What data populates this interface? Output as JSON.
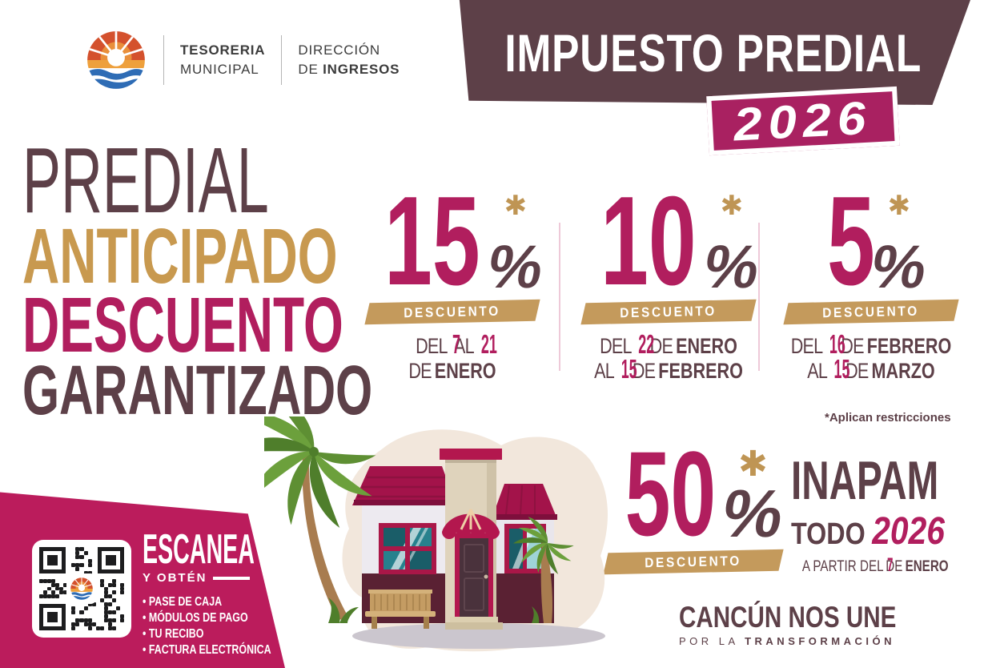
{
  "header": {
    "treasury": {
      "l1": "TESORERIA",
      "l2": "MUNICIPAL"
    },
    "direction": {
      "l1": "DIRECCIÓN",
      "l2a": "DE",
      "l2b": "INGRESOS"
    },
    "banner": {
      "title": "IMPUESTO PREDIAL",
      "year": "2026"
    }
  },
  "headline": {
    "l1": "PREDIAL",
    "l2": "ANTICIPADO",
    "l3": "DESCUENTO",
    "l4": "GARANTIZADO"
  },
  "discounts": [
    {
      "value": "15",
      "star": "✱",
      "percent": "%",
      "band": "DESCUENTO",
      "d1": [
        {
          "t": "DEL",
          "k": "thin"
        },
        {
          "t": "7",
          "k": "num"
        },
        {
          "t": "AL",
          "k": "thin"
        },
        {
          "t": "21",
          "k": "num"
        }
      ],
      "d2": [
        {
          "t": "DE",
          "k": "thin"
        },
        {
          "t": "ENERO",
          "k": "month"
        }
      ]
    },
    {
      "value": "10",
      "star": "✱",
      "percent": "%",
      "band": "DESCUENTO",
      "d1": [
        {
          "t": "DEL",
          "k": "thin"
        },
        {
          "t": "22",
          "k": "num"
        },
        {
          "t": "DE",
          "k": "thin"
        },
        {
          "t": "ENERO",
          "k": "month"
        }
      ],
      "d2": [
        {
          "t": "AL",
          "k": "thin"
        },
        {
          "t": "15",
          "k": "num"
        },
        {
          "t": "DE",
          "k": "thin"
        },
        {
          "t": "FEBRERO",
          "k": "month"
        }
      ]
    },
    {
      "value": "5",
      "star": "✱",
      "percent": "%",
      "band": "DESCUENTO",
      "d1": [
        {
          "t": "DEL",
          "k": "thin"
        },
        {
          "t": "16",
          "k": "num"
        },
        {
          "t": "DE",
          "k": "thin"
        },
        {
          "t": "FEBRERO",
          "k": "month"
        }
      ],
      "d2": [
        {
          "t": "AL",
          "k": "thin"
        },
        {
          "t": "15",
          "k": "num"
        },
        {
          "t": "DE",
          "k": "thin"
        },
        {
          "t": "MARZO",
          "k": "month"
        }
      ]
    }
  ],
  "restrictions": "*Aplican restricciones",
  "inapam": {
    "value": "50",
    "star": "✱",
    "percent": "%",
    "band": "DESCUENTO",
    "title": "INAPAM",
    "todo": "TODO",
    "year": "2026",
    "date": [
      {
        "t": "A PARTIR DEL",
        "k": "thin"
      },
      {
        "t": "7",
        "k": "num"
      },
      {
        "t": "DE",
        "k": "thin"
      },
      {
        "t": "ENERO",
        "k": "month"
      }
    ]
  },
  "qr_block": {
    "scan": "ESCANEA",
    "obtain": "Y OBTÉN",
    "items": [
      "PASE DE CAJA",
      "MÓDULOS DE PAGO",
      "TU RECIBO",
      "FACTURA ELECTRÓNICA"
    ]
  },
  "footer": {
    "l1": "CANCÚN NOS UNE",
    "l2a": "POR LA",
    "l2b": "TRANSFORMACIÓN"
  },
  "colors": {
    "plum": "#5D4048",
    "magenta": "#B11E5E",
    "gold_band": "#C49A5C",
    "promo_panel": "#BB1C5C",
    "year_badge": "#A92161",
    "banner_bg": "#5D4048"
  }
}
